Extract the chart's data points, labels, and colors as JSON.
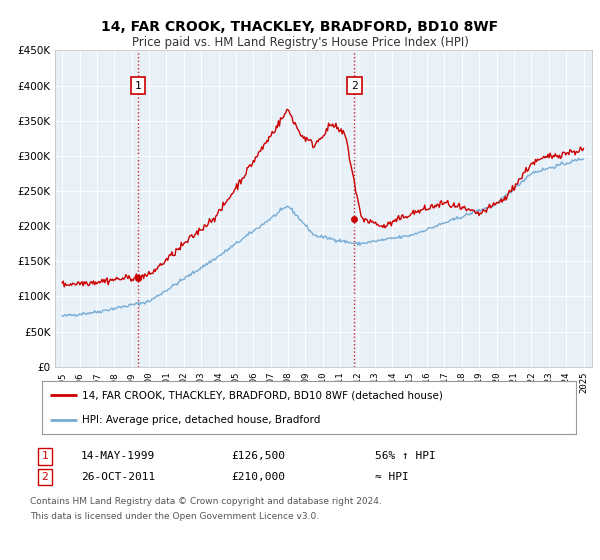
{
  "title": "14, FAR CROOK, THACKLEY, BRADFORD, BD10 8WF",
  "subtitle": "Price paid vs. HM Land Registry's House Price Index (HPI)",
  "legend_line1": "14, FAR CROOK, THACKLEY, BRADFORD, BD10 8WF (detached house)",
  "legend_line2": "HPI: Average price, detached house, Bradford",
  "footnote1": "Contains HM Land Registry data © Crown copyright and database right 2024.",
  "footnote2": "This data is licensed under the Open Government Licence v3.0.",
  "sale1_label": "1",
  "sale1_date": "14-MAY-1999",
  "sale1_price": "£126,500",
  "sale1_hpi": "56% ↑ HPI",
  "sale2_label": "2",
  "sale2_date": "26-OCT-2011",
  "sale2_price": "£210,000",
  "sale2_hpi": "≈ HPI",
  "sale1_year": 1999.37,
  "sale1_value": 126500,
  "sale2_year": 2011.82,
  "sale2_value": 210000,
  "red_color": "#cc0000",
  "blue_color": "#7aadd4",
  "bg_color": "#e8f0f8",
  "ylim": [
    0,
    450000
  ],
  "xlim_start": 1994.6,
  "xlim_end": 2025.5,
  "yticks": [
    0,
    50000,
    100000,
    150000,
    200000,
    250000,
    300000,
    350000,
    400000,
    450000
  ],
  "ytick_labels": [
    "£0",
    "£50K",
    "£100K",
    "£150K",
    "£200K",
    "£250K",
    "£300K",
    "£350K",
    "£400K",
    "£450K"
  ]
}
